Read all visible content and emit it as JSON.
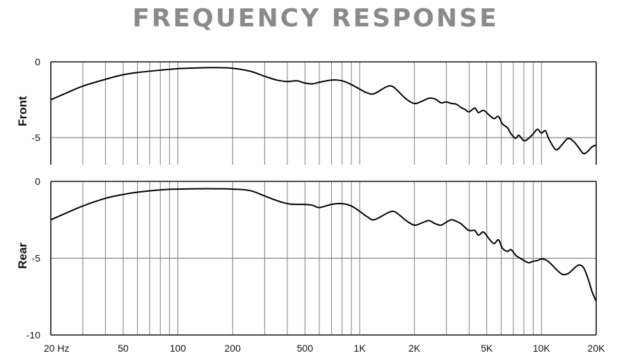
{
  "title": "FREQUENCY RESPONSE",
  "chart_data": [
    {
      "type": "line",
      "panel": "front",
      "ylabel": "Front",
      "x_scale": "log",
      "xlim": [
        20,
        20000
      ],
      "ylim": [
        -6.3,
        0
      ],
      "yticks": [
        {
          "value": 0,
          "label": "0"
        },
        {
          "value": -5,
          "label": "-5"
        }
      ],
      "xticks": [
        {
          "value": 20,
          "label": "20 Hz"
        },
        {
          "value": 50,
          "label": "50"
        },
        {
          "value": 100,
          "label": "100"
        },
        {
          "value": 200,
          "label": "200"
        },
        {
          "value": 500,
          "label": "500"
        },
        {
          "value": 1000,
          "label": "1K"
        },
        {
          "value": 2000,
          "label": "2K"
        },
        {
          "value": 5000,
          "label": "5K"
        },
        {
          "value": 10000,
          "label": "10K"
        },
        {
          "value": 20000,
          "label": "20K"
        }
      ],
      "grid": true,
      "series": [
        {
          "x": [
            20,
            25,
            30,
            40,
            50,
            60,
            80,
            100,
            130,
            160,
            200,
            250,
            300,
            350,
            400,
            450,
            500,
            550,
            600,
            700,
            800,
            900,
            1000,
            1100,
            1200,
            1400,
            1500,
            1600,
            1800,
            2000,
            2200,
            2400,
            2600,
            2800,
            3000,
            3200,
            3400,
            3600,
            3800,
            4000,
            4300,
            4500,
            4800,
            5200,
            5500,
            5800,
            6100,
            6500,
            6800,
            7200,
            7500,
            8000,
            8500,
            9000,
            9500,
            10000,
            10500,
            11000,
            12000,
            13000,
            14000,
            15000,
            16000,
            17000,
            18000,
            19000,
            20000
          ],
          "y": [
            -2.5,
            -2.0,
            -1.6,
            -1.15,
            -0.85,
            -0.7,
            -0.55,
            -0.45,
            -0.4,
            -0.38,
            -0.42,
            -0.62,
            -0.95,
            -1.2,
            -1.3,
            -1.25,
            -1.4,
            -1.45,
            -1.35,
            -1.2,
            -1.25,
            -1.5,
            -1.8,
            -2.05,
            -2.1,
            -1.65,
            -1.6,
            -1.85,
            -2.45,
            -2.75,
            -2.6,
            -2.4,
            -2.45,
            -2.7,
            -2.65,
            -2.75,
            -2.8,
            -3.0,
            -3.15,
            -3.3,
            -3.05,
            -3.35,
            -3.2,
            -3.55,
            -3.75,
            -3.6,
            -4.1,
            -4.35,
            -4.75,
            -5.05,
            -4.85,
            -5.2,
            -5.05,
            -4.75,
            -4.45,
            -4.7,
            -4.55,
            -5.1,
            -5.8,
            -5.45,
            -5.05,
            -5.25,
            -5.65,
            -6.05,
            -5.9,
            -5.6,
            -5.5
          ]
        }
      ]
    },
    {
      "type": "line",
      "panel": "rear",
      "ylabel": "Rear",
      "x_scale": "log",
      "xlim": [
        20,
        20000
      ],
      "ylim": [
        -10,
        0
      ],
      "yticks": [
        {
          "value": 0,
          "label": "0"
        },
        {
          "value": -5,
          "label": "-5"
        },
        {
          "value": -10,
          "label": "-10"
        }
      ],
      "xticks": [
        {
          "value": 20,
          "label": "20 Hz"
        },
        {
          "value": 50,
          "label": "50"
        },
        {
          "value": 100,
          "label": "100"
        },
        {
          "value": 200,
          "label": "200"
        },
        {
          "value": 500,
          "label": "500"
        },
        {
          "value": 1000,
          "label": "1K"
        },
        {
          "value": 2000,
          "label": "2K"
        },
        {
          "value": 5000,
          "label": "5K"
        },
        {
          "value": 10000,
          "label": "10K"
        },
        {
          "value": 20000,
          "label": "20K"
        }
      ],
      "grid": true,
      "series": [
        {
          "x": [
            20,
            25,
            30,
            40,
            50,
            60,
            80,
            100,
            130,
            160,
            200,
            250,
            300,
            350,
            400,
            450,
            500,
            550,
            600,
            700,
            800,
            900,
            1000,
            1100,
            1200,
            1400,
            1500,
            1600,
            1800,
            2000,
            2200,
            2400,
            2600,
            2800,
            3000,
            3200,
            3400,
            3600,
            3800,
            4000,
            4300,
            4500,
            4800,
            5200,
            5500,
            5800,
            6100,
            6500,
            6800,
            7200,
            7500,
            8000,
            8500,
            9000,
            9500,
            10000,
            10500,
            11000,
            12000,
            13000,
            14000,
            15000,
            16000,
            17000,
            18000,
            19000,
            20000
          ],
          "y": [
            -2.5,
            -2.0,
            -1.6,
            -1.1,
            -0.85,
            -0.7,
            -0.55,
            -0.5,
            -0.48,
            -0.48,
            -0.5,
            -0.6,
            -0.95,
            -1.25,
            -1.45,
            -1.5,
            -1.5,
            -1.55,
            -1.7,
            -1.5,
            -1.45,
            -1.6,
            -1.95,
            -2.3,
            -2.5,
            -2.1,
            -1.95,
            -2.05,
            -2.55,
            -2.85,
            -2.7,
            -2.55,
            -2.75,
            -2.85,
            -2.65,
            -2.5,
            -2.6,
            -2.75,
            -3.0,
            -3.2,
            -3.2,
            -3.5,
            -3.3,
            -3.8,
            -4.05,
            -3.8,
            -4.35,
            -4.55,
            -4.45,
            -4.8,
            -4.95,
            -5.15,
            -5.3,
            -5.2,
            -5.15,
            -5.05,
            -5.1,
            -5.25,
            -5.7,
            -6.05,
            -6.0,
            -5.7,
            -5.45,
            -5.6,
            -6.3,
            -7.2,
            -7.8
          ]
        }
      ]
    }
  ]
}
